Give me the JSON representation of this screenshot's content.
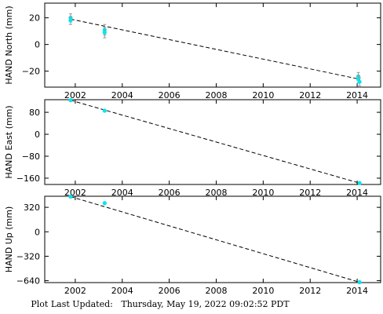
{
  "footer": {
    "text": "Plot Last Updated:   Thursday, May 19, 2022 09:02:52 PDT"
  },
  "style": {
    "point_color": "#00e5ee",
    "errorbar_color": "#999999",
    "trend_line": "dashed",
    "trend_color": "#000000"
  },
  "chart_data": [
    {
      "type": "scatter",
      "ylabel": "HAND North (mm)",
      "xlim": [
        2000.7,
        2015.0
      ],
      "ylim": [
        -32,
        31
      ],
      "y_ticks": [
        20,
        0,
        -20
      ],
      "x_ticks": [
        2002,
        2004,
        2006,
        2008,
        2010,
        2012,
        2014
      ],
      "grid": false,
      "points": [
        {
          "x": 2001.8,
          "y": 20,
          "err": 3
        },
        {
          "x": 2001.8,
          "y": 18,
          "err": 3
        },
        {
          "x": 2003.25,
          "y": 11,
          "err": 4
        },
        {
          "x": 2003.25,
          "y": 9,
          "err": 4
        },
        {
          "x": 2014.05,
          "y": -24,
          "err": 3
        },
        {
          "x": 2014.05,
          "y": -26,
          "err": 3
        },
        {
          "x": 2014.1,
          "y": -28,
          "err": 3
        }
      ],
      "trend": [
        [
          2001.8,
          19
        ],
        [
          2014.1,
          -26
        ]
      ]
    },
    {
      "type": "scatter",
      "ylabel": "HAND East (mm)",
      "xlim": [
        2000.7,
        2015.0
      ],
      "ylim": [
        -183,
        126
      ],
      "y_ticks": [
        80,
        0,
        -80,
        -160
      ],
      "x_ticks": [
        2002,
        2004,
        2006,
        2008,
        2010,
        2012,
        2014
      ],
      "grid": false,
      "points": [
        {
          "x": 2001.8,
          "y": 124,
          "err": 0
        },
        {
          "x": 2003.25,
          "y": 86,
          "err": 0
        },
        {
          "x": 2014.1,
          "y": -178,
          "err": 0
        }
      ],
      "trend": [
        [
          2001.8,
          124
        ],
        [
          2014.1,
          -178
        ]
      ]
    },
    {
      "type": "scatter",
      "ylabel": "HAND Up (mm)",
      "xlim": [
        2000.7,
        2015.0
      ],
      "ylim": [
        -665,
        465
      ],
      "y_ticks": [
        320,
        0,
        -320,
        -640
      ],
      "x_ticks": [
        2002,
        2004,
        2006,
        2008,
        2010,
        2012,
        2014
      ],
      "grid": false,
      "points": [
        {
          "x": 2001.8,
          "y": 460,
          "err": 0
        },
        {
          "x": 2003.25,
          "y": 375,
          "err": 0
        },
        {
          "x": 2014.1,
          "y": -660,
          "err": 0
        }
      ],
      "trend": [
        [
          2001.8,
          460
        ],
        [
          2014.1,
          -660
        ]
      ]
    }
  ]
}
